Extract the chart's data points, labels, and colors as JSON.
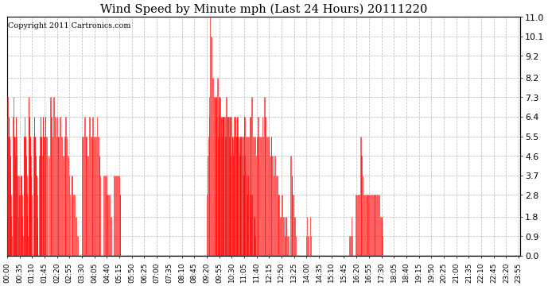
{
  "title": "Wind Speed by Minute mph (Last 24 Hours) 20111220",
  "copyright_text": "Copyright 2011 Cartronics.com",
  "bar_color": "#ff0000",
  "background_color": "#ffffff",
  "plot_bg_color": "#ffffff",
  "ylim": [
    0.0,
    11.0
  ],
  "yticks": [
    0.0,
    0.9,
    1.8,
    2.8,
    3.7,
    4.6,
    5.5,
    6.4,
    7.3,
    8.2,
    9.2,
    10.1,
    11.0
  ],
  "grid_color": "#bbbbbb",
  "total_minutes": 1440,
  "x_tick_labels": [
    "00:00",
    "00:35",
    "01:10",
    "01:45",
    "02:20",
    "02:55",
    "03:30",
    "04:05",
    "04:40",
    "05:15",
    "05:50",
    "06:25",
    "07:00",
    "07:35",
    "08:10",
    "08:45",
    "09:20",
    "09:55",
    "10:30",
    "11:05",
    "11:40",
    "12:15",
    "12:50",
    "13:25",
    "14:00",
    "14:35",
    "15:10",
    "15:45",
    "16:20",
    "16:55",
    "17:30",
    "18:05",
    "18:40",
    "19:15",
    "19:50",
    "20:25",
    "21:00",
    "21:35",
    "22:10",
    "22:45",
    "23:20",
    "23:55"
  ]
}
